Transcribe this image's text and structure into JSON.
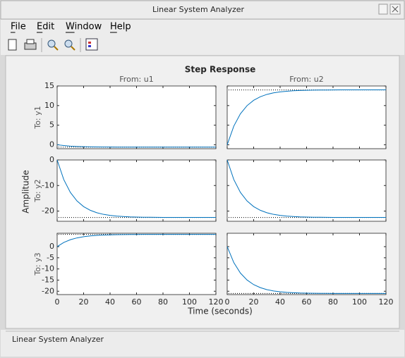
{
  "window": {
    "title": "Linear System Analyzer"
  },
  "menu": [
    "File",
    "Edit",
    "Window",
    "Help"
  ],
  "plot": {
    "type": "line",
    "title": "Step Response",
    "xlabel": "Time (seconds)",
    "ylabel": "Amplitude",
    "line_color": "#0072bd",
    "columns": [
      "From: u1",
      "From: u2"
    ],
    "xlim": [
      0,
      120
    ],
    "xticks": [
      0,
      20,
      40,
      60,
      80,
      100,
      120
    ],
    "x": [
      0,
      5,
      10,
      15,
      20,
      25,
      30,
      35,
      40,
      45,
      50,
      55,
      60,
      65,
      70,
      75,
      80,
      85,
      90,
      95,
      100,
      105,
      110,
      115,
      120
    ],
    "rows": [
      {
        "label": "To: y1",
        "ylim": [
          -1,
          15
        ],
        "yticks": [
          0,
          5,
          10,
          15
        ],
        "panels": [
          {
            "steady_state": -0.6,
            "values": [
              0,
              -0.2,
              -0.34,
              -0.43,
              -0.49,
              -0.53,
              -0.55,
              -0.57,
              -0.58,
              -0.59,
              -0.59,
              -0.59,
              -0.6,
              -0.6,
              -0.6,
              -0.6,
              -0.6,
              -0.6,
              -0.6,
              -0.6,
              -0.6,
              -0.6,
              -0.6,
              -0.6,
              -0.6
            ]
          },
          {
            "steady_state": 14,
            "values": [
              0,
              4.77,
              7.91,
              9.98,
              11.35,
              12.25,
              12.85,
              13.24,
              13.5,
              13.66,
              13.78,
              13.86,
              13.9,
              13.94,
              13.96,
              13.97,
              13.99,
              14,
              14,
              14,
              14,
              14,
              14,
              14,
              14
            ]
          }
        ]
      },
      {
        "label": "To: y2",
        "ylim": [
          -24,
          0
        ],
        "yticks": [
          -20,
          -10,
          0
        ],
        "panels": [
          {
            "steady_state": -22.5,
            "values": [
              0,
              -7.67,
              -12.71,
              -16.04,
              -18.25,
              -19.69,
              -20.66,
              -21.29,
              -21.69,
              -21.96,
              -22.14,
              -22.28,
              -22.34,
              -22.41,
              -22.43,
              -22.46,
              -22.48,
              -22.5,
              -22.5,
              -22.5,
              -22.5,
              -22.5,
              -22.5,
              -22.5,
              -22.5
            ]
          },
          {
            "steady_state": -22.5,
            "values": [
              0,
              -7.67,
              -12.71,
              -16.04,
              -18.25,
              -19.69,
              -20.66,
              -21.29,
              -21.69,
              -21.96,
              -22.14,
              -22.28,
              -22.34,
              -22.41,
              -22.43,
              -22.46,
              -22.48,
              -22.5,
              -22.5,
              -22.5,
              -22.5,
              -22.5,
              -22.5,
              -22.5,
              -22.5
            ]
          }
        ]
      },
      {
        "label": "To: y3",
        "ylim": [
          -21.5,
          6
        ],
        "yticks": [
          -20,
          -15,
          -10,
          -5,
          0
        ],
        "panels": [
          {
            "steady_state": 5.5,
            "values": [
              0,
              1.88,
              3.11,
              3.92,
              4.46,
              4.81,
              5.05,
              5.2,
              5.3,
              5.37,
              5.41,
              5.45,
              5.46,
              5.48,
              5.48,
              5.49,
              5.49,
              5.5,
              5.5,
              5.5,
              5.5,
              5.5,
              5.5,
              5.5,
              5.5
            ]
          },
          {
            "steady_state": -21,
            "values": [
              0,
              -7.16,
              -11.87,
              -14.97,
              -17.03,
              -18.38,
              -19.28,
              -19.87,
              -20.24,
              -20.5,
              -20.66,
              -20.79,
              -20.85,
              -20.92,
              -20.94,
              -20.96,
              -20.98,
              -21,
              -21,
              -21,
              -21,
              -21,
              -21,
              -21,
              -21
            ]
          }
        ]
      }
    ]
  },
  "status": "Linear System Analyzer"
}
